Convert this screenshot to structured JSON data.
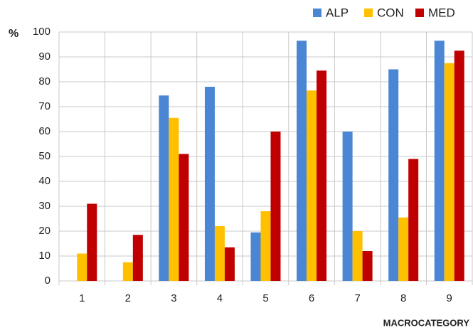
{
  "chart_data": {
    "type": "bar",
    "y_label": "%",
    "x_label": "MACROCATEGORY",
    "categories": [
      "1",
      "2",
      "3",
      "4",
      "5",
      "6",
      "7",
      "8",
      "9"
    ],
    "series": [
      {
        "name": "ALP",
        "color": "#4a86d4",
        "values": [
          0,
          0,
          74.5,
          78,
          19.5,
          96.5,
          60,
          85,
          96.5
        ]
      },
      {
        "name": "CON",
        "color": "#ffc000",
        "values": [
          11,
          7.5,
          65.5,
          22,
          28,
          76.5,
          20,
          25.5,
          87.5
        ]
      },
      {
        "name": "MED",
        "color": "#c00000",
        "values": [
          31,
          18.5,
          51,
          13.5,
          60,
          84.5,
          12,
          49,
          92.5
        ]
      }
    ],
    "ylim": [
      0,
      100
    ],
    "yticks": [
      0,
      10,
      20,
      30,
      40,
      50,
      60,
      70,
      80,
      90,
      100
    ],
    "grid": true,
    "legend": "top-right"
  }
}
